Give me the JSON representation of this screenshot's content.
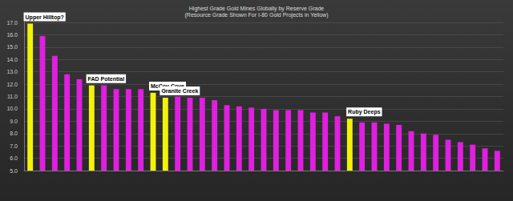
{
  "chart_data": {
    "type": "bar",
    "title": "Highest Grade Gold Mines Globally by Reserve Grade",
    "subtitle": "(Resource Grade Shown For I-80 Gold Projects in Yellow)",
    "categories": [
      null,
      null,
      null,
      null,
      null,
      null,
      null,
      null,
      null,
      null,
      null,
      null,
      null,
      null,
      null,
      null,
      null,
      null,
      null,
      null,
      null,
      null,
      null,
      null,
      null,
      null,
      null,
      null,
      null,
      null,
      null,
      null,
      null,
      null,
      null,
      null,
      null,
      null,
      null
    ],
    "values": [
      16.9,
      15.9,
      14.3,
      12.8,
      12.4,
      11.9,
      11.9,
      11.6,
      11.6,
      11.6,
      11.3,
      10.9,
      11.0,
      10.9,
      10.9,
      10.7,
      10.3,
      10.2,
      10.1,
      10.0,
      9.9,
      9.9,
      9.9,
      9.7,
      9.7,
      9.4,
      9.2,
      8.9,
      8.9,
      8.8,
      8.7,
      8.2,
      8.0,
      7.9,
      7.5,
      7.3,
      7.1,
      6.8,
      6.6
    ],
    "colors": [
      "#f2f20a",
      "#e01fe0",
      "#e01fe0",
      "#e01fe0",
      "#e01fe0",
      "#f2f20a",
      "#e01fe0",
      "#e01fe0",
      "#e01fe0",
      "#e01fe0",
      "#f2f20a",
      "#f2f20a",
      "#e01fe0",
      "#e01fe0",
      "#e01fe0",
      "#e01fe0",
      "#e01fe0",
      "#e01fe0",
      "#e01fe0",
      "#e01fe0",
      "#e01fe0",
      "#e01fe0",
      "#e01fe0",
      "#e01fe0",
      "#e01fe0",
      "#e01fe0",
      "#f2f20a",
      "#e01fe0",
      "#e01fe0",
      "#e01fe0",
      "#e01fe0",
      "#e01fe0",
      "#e01fe0",
      "#e01fe0",
      "#e01fe0",
      "#e01fe0",
      "#e01fe0",
      "#e01fe0",
      "#e01fe0"
    ],
    "annotations": [
      {
        "text": "Upper Hilltop?",
        "index": 0
      },
      {
        "text": "FAD Potential",
        "index": 5
      },
      {
        "text": "McCoy Cove",
        "index": 10
      },
      {
        "text": "Granite Creek",
        "index": 11
      },
      {
        "text": "Ruby Deeps",
        "index": 26
      }
    ],
    "ylim": [
      5,
      17
    ],
    "yticks": [
      {
        "value": 5,
        "label": "5.0"
      },
      {
        "value": 6,
        "label": "6.0"
      },
      {
        "value": 7,
        "label": "7.0"
      },
      {
        "value": 8,
        "label": "8.0"
      },
      {
        "value": 9,
        "label": "9.0"
      },
      {
        "value": 10,
        "label": "10.0"
      },
      {
        "value": 11,
        "label": "11.0"
      },
      {
        "value": 12,
        "label": "12.0"
      },
      {
        "value": 13,
        "label": "13.0"
      },
      {
        "value": 14,
        "label": "14.0"
      },
      {
        "value": 15,
        "label": "15.0"
      },
      {
        "value": 16,
        "label": "16.0"
      },
      {
        "value": 17,
        "label": "17.0"
      }
    ],
    "grid": true
  }
}
